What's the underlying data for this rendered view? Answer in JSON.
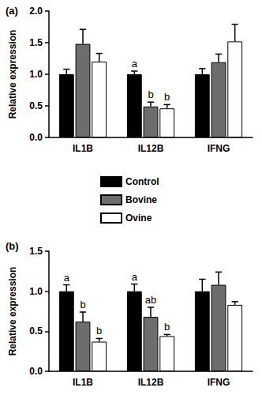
{
  "chart_data": [
    {
      "type": "bar",
      "title": "(a)",
      "y_label": "Relative expression",
      "categories": [
        "IL1B",
        "IL12B",
        "IFNG"
      ],
      "ylim": [
        0,
        2
      ],
      "yticks": [
        {
          "value": 0,
          "label": "0.0"
        },
        {
          "value": 0.5,
          "label": "0.5"
        },
        {
          "value": 1,
          "label": "1.0"
        },
        {
          "value": 1.5,
          "label": "1.5"
        },
        {
          "value": 2,
          "label": "2.0"
        }
      ],
      "grid": false,
      "legend": "center",
      "series": [
        {
          "name": "Control",
          "color": "#000000",
          "values": [
            1.0,
            1.0,
            1.0
          ],
          "errors": [
            0.08,
            0.05,
            0.09
          ],
          "letters": [
            null,
            "a",
            null
          ]
        },
        {
          "name": "Bovine",
          "color": "#6d6d6d",
          "values": [
            1.48,
            0.49,
            1.19
          ],
          "errors": [
            0.23,
            0.07,
            0.13
          ],
          "letters": [
            null,
            "b",
            null
          ]
        },
        {
          "name": "Ovine",
          "color": "#ffffff",
          "values": [
            1.2,
            0.46,
            1.52
          ],
          "errors": [
            0.13,
            0.06,
            0.27
          ],
          "letters": [
            null,
            "b",
            null
          ]
        }
      ]
    },
    {
      "type": "bar",
      "title": "(b)",
      "y_label": "Relative expression",
      "categories": [
        "IL1B",
        "IL12B",
        "IFNG"
      ],
      "ylim": [
        0,
        1.5
      ],
      "yticks": [
        {
          "value": 0,
          "label": "0.0"
        },
        {
          "value": 0.5,
          "label": "0.5"
        },
        {
          "value": 1,
          "label": "1.0"
        },
        {
          "value": 1.5,
          "label": "1.5"
        }
      ],
      "grid": false,
      "series": [
        {
          "name": "Control",
          "color": "#000000",
          "values": [
            1.0,
            1.0,
            1.0
          ],
          "errors": [
            0.08,
            0.09,
            0.15
          ],
          "letters": [
            "a",
            "a",
            null
          ]
        },
        {
          "name": "Bovine",
          "color": "#6d6d6d",
          "values": [
            0.62,
            0.68,
            1.08
          ],
          "errors": [
            0.12,
            0.12,
            0.16
          ],
          "letters": [
            "b",
            "ab",
            null
          ]
        },
        {
          "name": "Ovine",
          "color": "#ffffff",
          "values": [
            0.37,
            0.44,
            0.83
          ],
          "errors": [
            0.04,
            0.02,
            0.04
          ],
          "letters": [
            "b",
            "b",
            null
          ]
        }
      ]
    }
  ]
}
